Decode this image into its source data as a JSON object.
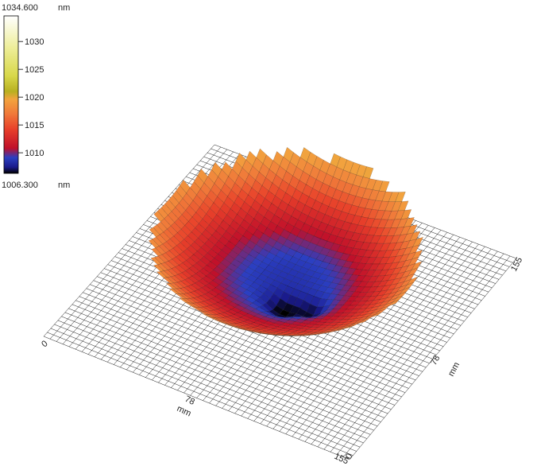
{
  "chart_data": {
    "type": "surface",
    "colorbar": {
      "max_label": "1034.600",
      "min_label": "1006.300",
      "unit": "nm",
      "min": 1006.3,
      "max": 1034.6,
      "ticks": [
        {
          "value": 1010,
          "label": "1010"
        },
        {
          "value": 1015,
          "label": "1015"
        },
        {
          "value": 1020,
          "label": "1020"
        },
        {
          "value": 1025,
          "label": "1025"
        },
        {
          "value": 1030,
          "label": "1030"
        }
      ],
      "colors": [
        "#000000",
        "#1a1a8c",
        "#2b3fc2",
        "#c0102a",
        "#e8402a",
        "#f07a3a",
        "#f2a33e",
        "#b8b020",
        "#d8d84a",
        "#eeee9a",
        "#ffffff"
      ]
    },
    "x_axis": {
      "min_label": "0",
      "mid_label": "78",
      "max_label": "155",
      "unit": "mm",
      "min": 0,
      "max": 155
    },
    "y_axis": {
      "min_label": "0",
      "mid_label": "78",
      "max_label": "155",
      "unit": "mm",
      "min": 0,
      "max": 155
    }
  }
}
